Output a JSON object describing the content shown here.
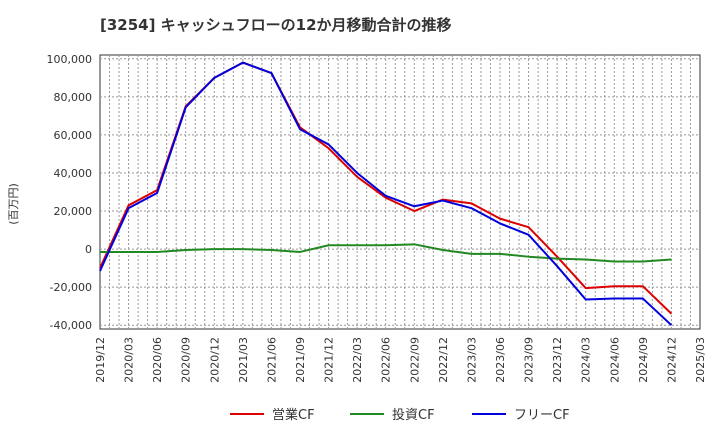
{
  "chart_data": {
    "type": "line",
    "title": "[3254]  キャッシュフローの12か月移動合計の推移",
    "ylabel": "(百万円)",
    "xlabel": "",
    "ylim": [
      -42000,
      102000
    ],
    "yticks": [
      100000,
      80000,
      60000,
      40000,
      20000,
      0,
      -20000,
      -40000
    ],
    "ytick_labels": [
      "100,000",
      "80,000",
      "60,000",
      "40,000",
      "20,000",
      "0",
      "-20,000",
      "-40,000"
    ],
    "x_tick_labels": [
      "2019/12",
      "2020/03",
      "2020/06",
      "2020/09",
      "2020/12",
      "2021/03",
      "2021/06",
      "2021/09",
      "2021/12",
      "2022/03",
      "2022/06",
      "2022/09",
      "2022/12",
      "2023/03",
      "2023/06",
      "2023/09",
      "2023/12",
      "2024/03",
      "2024/06",
      "2024/09",
      "2024/12",
      "2025/03"
    ],
    "grid": true,
    "legend_position": "bottom",
    "series": [
      {
        "name": "営業CF",
        "color": "#dd0000",
        "values": [
          -10000,
          23000,
          31000,
          75000,
          90000,
          98000,
          92500,
          64000,
          53000,
          38000,
          27000,
          20000,
          26000,
          24000,
          16000,
          11500,
          -4000,
          -20500,
          -19500,
          -19500,
          -34000
        ]
      },
      {
        "name": "投資CF",
        "color": "#228822",
        "values": [
          -1500,
          -1500,
          -1500,
          -500,
          0,
          0,
          -500,
          -1500,
          2000,
          2000,
          2000,
          2500,
          -500,
          -2500,
          -2500,
          -4000,
          -5000,
          -5500,
          -6500,
          -6500,
          -5500
        ]
      },
      {
        "name": "フリーCF",
        "color": "#0000dd",
        "values": [
          -11500,
          21500,
          29500,
          74500,
          90000,
          98000,
          92500,
          63000,
          55000,
          40000,
          28000,
          22500,
          25500,
          21500,
          13500,
          7500,
          -9000,
          -26500,
          -26000,
          -26000,
          -40000
        ]
      }
    ]
  }
}
